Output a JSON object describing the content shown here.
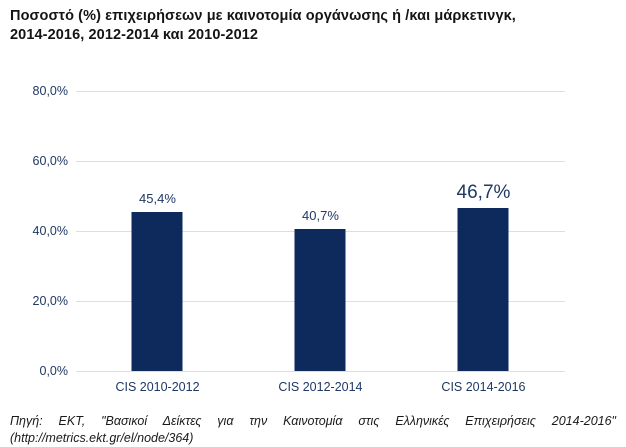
{
  "header": {
    "title_line1": "Ποσοστό (%) επιχειρήσεων με καινοτομία οργάνωσης ή /και μάρκετινγκ,",
    "title_line2": "2014-2016, 2012-2014 και 2010-2012"
  },
  "chart_data": {
    "type": "bar",
    "title": "Ποσοστό (%) επιχειρήσεων με καινοτομία οργάνωσης ή /και μάρκετινγκ, 2014-2016, 2012-2014 και 2010-2012",
    "categories": [
      "CIS 2010-2012",
      "CIS 2012-2014",
      "CIS 2014-2016"
    ],
    "values": [
      45.4,
      40.7,
      46.7
    ],
    "value_labels": [
      "45,4%",
      "40,7%",
      "46,7%"
    ],
    "emphasized_index": 2,
    "xlabel": "",
    "ylabel": "",
    "ylim": [
      0,
      80
    ],
    "yticks": [
      {
        "value": 0,
        "label": "0,0%"
      },
      {
        "value": 20,
        "label": "20,0%"
      },
      {
        "value": 40,
        "label": "40,0%"
      },
      {
        "value": 60,
        "label": "60,0%"
      },
      {
        "value": 80,
        "label": "80,0%"
      }
    ],
    "grid": true,
    "legend": "none",
    "colors": {
      "bar": "#0e2a5c",
      "labels": "#1f3864",
      "gridline": "#dedede"
    }
  },
  "source": {
    "line1": "Πηγή: ΕΚΤ, \"Βασικοί Δείκτες για την Καινοτομία στις Ελληνικές Επιχειρήσεις 2014-2016\"",
    "line2": "(http://metrics.ekt.gr/el/node/364)"
  }
}
